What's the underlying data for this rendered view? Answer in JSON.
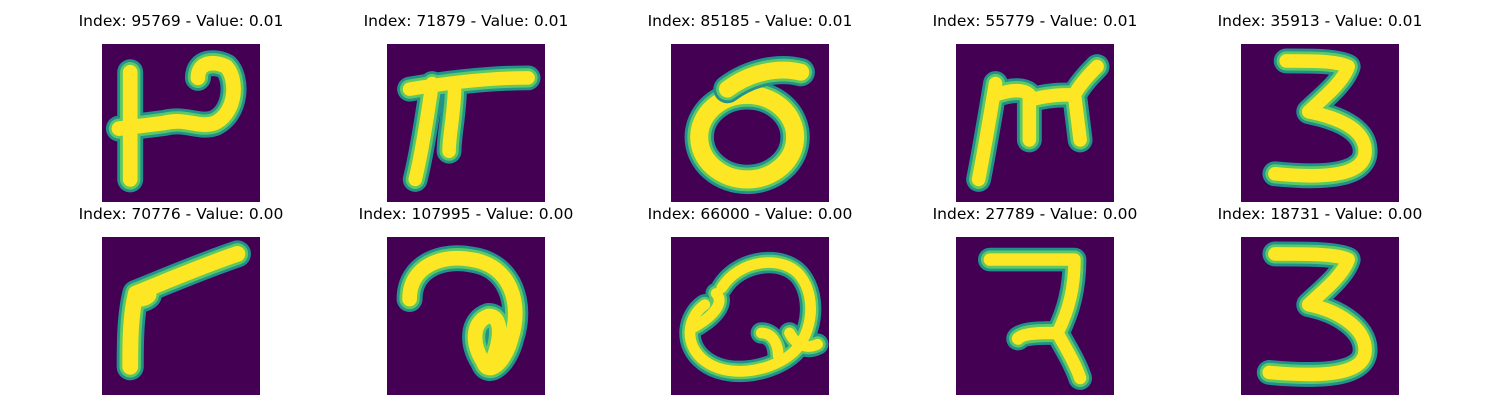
{
  "figure": {
    "panels": [
      {
        "title": "Index: 95769 - Value: 0.01",
        "glyph": "handwritten-character-like-H-with-loop"
      },
      {
        "title": "Index: 71879 - Value: 0.01",
        "glyph": "handwritten-character-like-pi-with-bar"
      },
      {
        "title": "Index: 85185 - Value: 0.01",
        "glyph": "handwritten-character-like-zero-with-top-stroke"
      },
      {
        "title": "Index: 55779 - Value: 0.01",
        "glyph": "handwritten-character-like-m"
      },
      {
        "title": "Index: 35913 - Value: 0.01",
        "glyph": "handwritten-digit-three"
      },
      {
        "title": "Index: 70776 - Value: 0.00",
        "glyph": "handwritten-character-like-seven"
      },
      {
        "title": "Index: 107995 - Value: 0.00",
        "glyph": "handwritten-character-like-a"
      },
      {
        "title": "Index: 66000 - Value: 0.00",
        "glyph": "handwritten-character-like-Q-with-loops"
      },
      {
        "title": "Index: 27789 - Value: 0.00",
        "glyph": "handwritten-character-like-Z-with-tail"
      },
      {
        "title": "Index: 18731 - Value: 0.00",
        "glyph": "handwritten-digit-three"
      }
    ],
    "colors": {
      "background": "#440154",
      "stroke_core": "#fde725",
      "stroke_mid": "#5ec962",
      "stroke_outer": "#21918c"
    }
  }
}
